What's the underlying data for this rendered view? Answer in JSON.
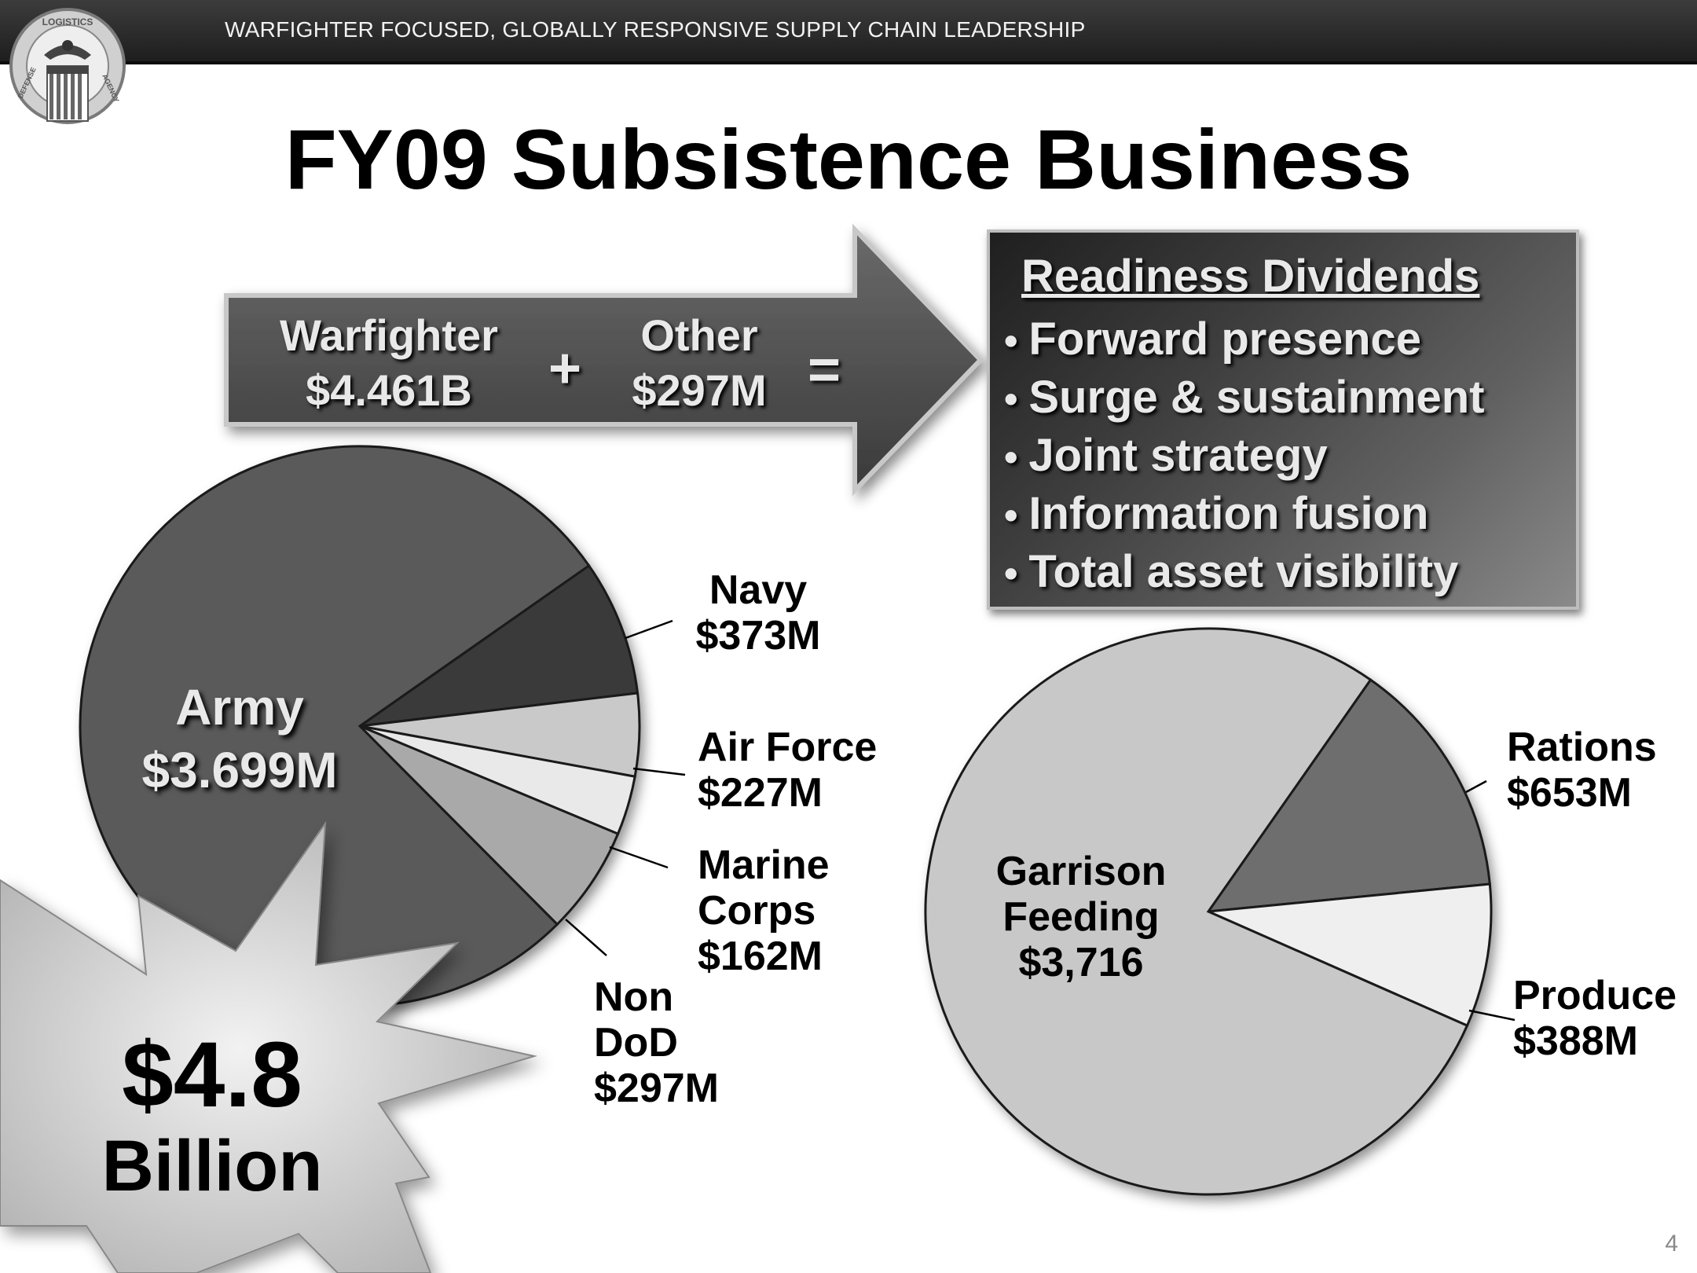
{
  "header": {
    "tagline": "WARFIGHTER FOCUSED, GLOBALLY RESPONSIVE SUPPLY CHAIN LEADERSHIP"
  },
  "logo": {
    "ring_text_top": "LOGISTICS",
    "ring_text_left": "DEFENSE",
    "ring_text_right": "AGENCY"
  },
  "title": "FY09 Subsistence Business",
  "equation": {
    "warfighter_label": "Warfighter",
    "warfighter_value": "$4.461B",
    "plus": "+",
    "other_label": "Other",
    "other_value": "$297M",
    "equals": "="
  },
  "readiness": {
    "heading": "Readiness Dividends",
    "items": [
      "Forward presence",
      "Surge & sustainment",
      "Joint strategy",
      "Information fusion",
      "Total asset visibility"
    ]
  },
  "chart_data": [
    {
      "type": "pie",
      "slices": [
        {
          "label": "Army",
          "value_text": "$3.699M",
          "value": 3699,
          "color": "#5a5a5a"
        },
        {
          "label": "Navy",
          "value_text": "$373M",
          "value": 373,
          "color": "#3a3a3a"
        },
        {
          "label": "Air Force",
          "value_text": "$227M",
          "value": 227,
          "color": "#c9c9c9"
        },
        {
          "label": "Marine Corps",
          "value_text": "$162M",
          "value": 162,
          "color": "#e9e9e9"
        },
        {
          "label": "Non DoD",
          "value_text": "$297M",
          "value": 297,
          "color": "#a9a9a9"
        }
      ]
    },
    {
      "type": "pie",
      "slices": [
        {
          "label": "Garrison Feeding",
          "value_text": "$3,716",
          "value": 3716,
          "color": "#c8c8c8"
        },
        {
          "label": "Rations",
          "value_text": "$653M",
          "value": 653,
          "color": "#6e6e6e"
        },
        {
          "label": "Produce",
          "value_text": "$388M",
          "value": 388,
          "color": "#efefef"
        }
      ]
    }
  ],
  "pie_labels": {
    "army_name": "Army",
    "army_value": "$3.699M",
    "navy_name": "Navy",
    "navy_value": "$373M",
    "airforce_name": "Air Force",
    "airforce_value": "$227M",
    "marine_line1": "Marine",
    "marine_line2": "Corps",
    "marine_value": "$162M",
    "nondod_line1": "Non",
    "nondod_line2": "DoD",
    "nondod_value": "$297M",
    "garrison_line1": "Garrison",
    "garrison_line2": "Feeding",
    "garrison_value": "$3,716",
    "rations_name": "Rations",
    "rations_value": "$653M",
    "produce_name": "Produce",
    "produce_value": "$388M"
  },
  "starburst": {
    "amount": "$4.8",
    "unit": "Billion"
  },
  "page_number": "4"
}
